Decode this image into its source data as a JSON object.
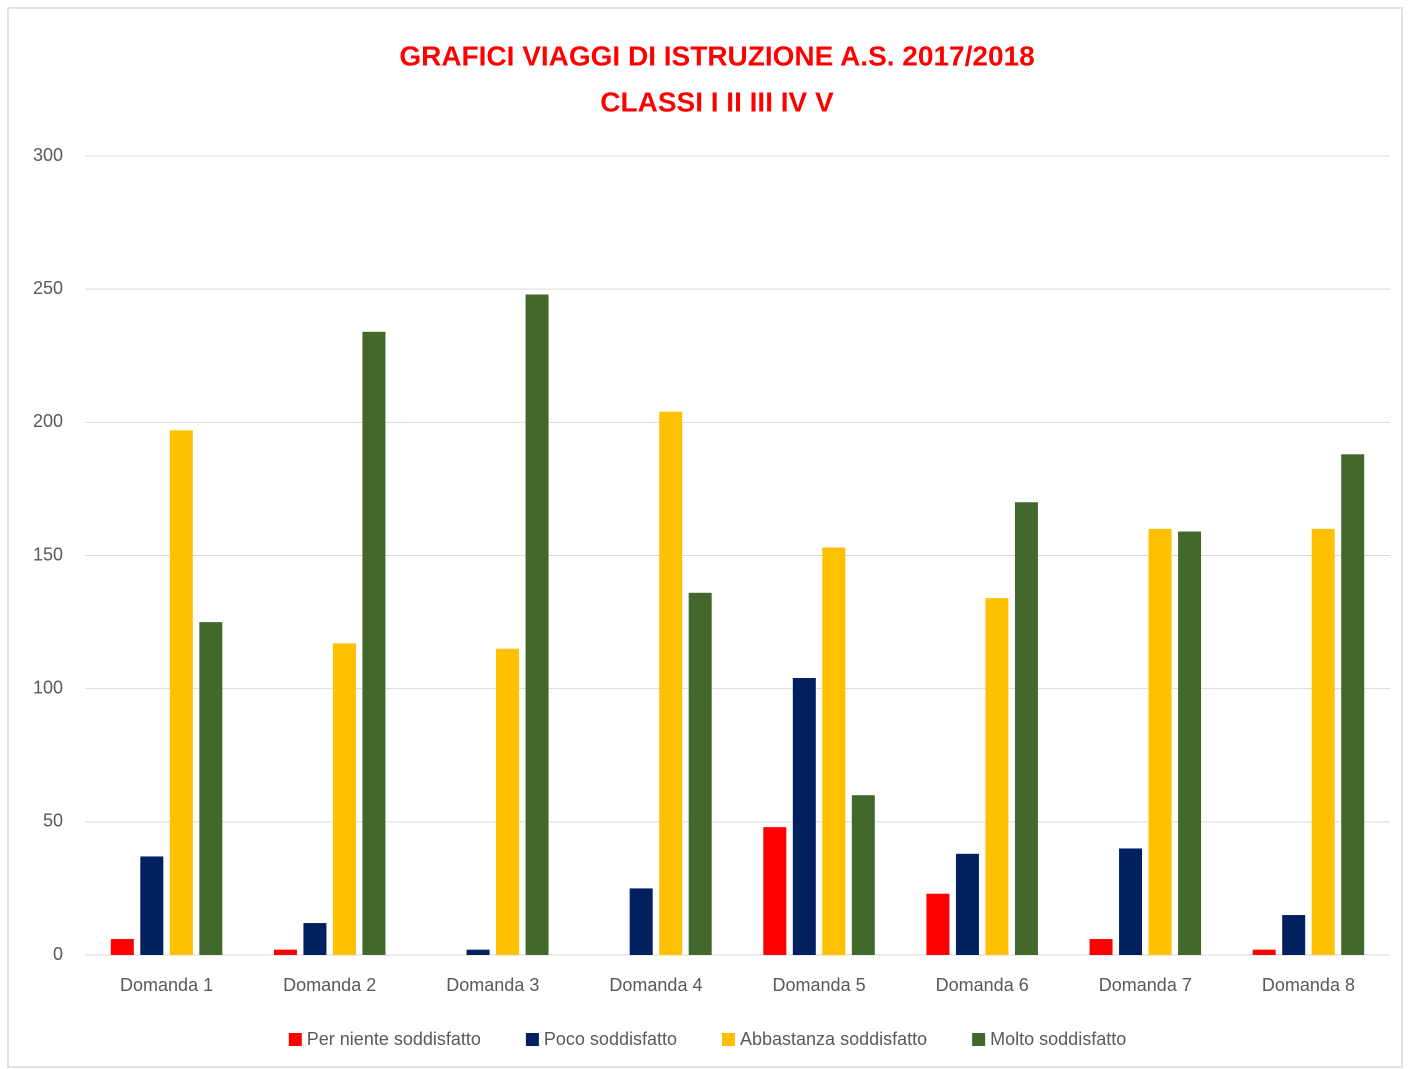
{
  "chart_data": {
    "type": "bar",
    "title": [
      "GRAFICI VIAGGI DI ISTRUZIONE A.S. 2017/2018",
      "CLASSI I II III IV V"
    ],
    "categories": [
      "Domanda 1",
      "Domanda 2",
      "Domanda 3",
      "Domanda 4",
      "Domanda 5",
      "Domanda 6",
      "Domanda 7",
      "Domanda 8"
    ],
    "series": [
      {
        "name": "Per niente soddisfatto",
        "color": "#ff0000",
        "values": [
          6,
          2,
          0,
          0,
          48,
          23,
          6,
          2
        ]
      },
      {
        "name": "Poco soddisfatto",
        "color": "#002060",
        "values": [
          37,
          12,
          2,
          25,
          104,
          38,
          40,
          15
        ]
      },
      {
        "name": "Abbastanza soddisfatto",
        "color": "#ffc000",
        "values": [
          197,
          117,
          115,
          204,
          153,
          134,
          160,
          160
        ]
      },
      {
        "name": "Molto soddisfatto",
        "color": "#43682b",
        "values": [
          125,
          234,
          248,
          136,
          60,
          170,
          159,
          188
        ]
      }
    ],
    "ylim": [
      0,
      300
    ],
    "yticks": [
      0,
      50,
      100,
      150,
      200,
      250,
      300
    ],
    "grid": true,
    "legend": "bottom"
  }
}
